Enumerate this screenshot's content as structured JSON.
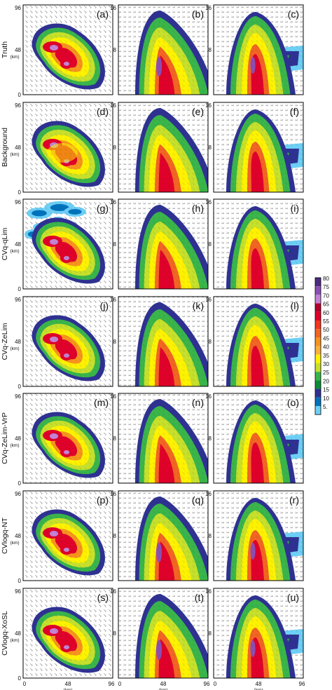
{
  "figure": {
    "row_labels": [
      "Truth",
      "Background",
      "CVq-qLim",
      "CVq-ZeLim",
      "CVq-ZeLim-VrP",
      "CVlogq-NT",
      "CVlogq-XoSL"
    ],
    "panel_labels": [
      [
        "(a)",
        "(b)",
        "(c)"
      ],
      [
        "(d)",
        "(e)",
        "(f)"
      ],
      [
        "(g)",
        "(h)",
        "(i)"
      ],
      [
        "(j)",
        "(k)",
        "(l)"
      ],
      [
        "(m)",
        "(n)",
        "(o)"
      ],
      [
        "(p)",
        "(q)",
        "(r)"
      ],
      [
        "(s)",
        "(t)",
        "(u)"
      ]
    ],
    "plan_view_y_ticks": [
      "0",
      "48",
      "96"
    ],
    "cross_section_y_ticks": [
      "8",
      "16"
    ],
    "x_ticks": [
      "0",
      "48",
      "96"
    ],
    "x_unit": "(km)",
    "y_unit": "(km)"
  },
  "colorbar": {
    "labels": [
      "80",
      "75",
      "70",
      "65",
      "60",
      "55",
      "50",
      "45",
      "40",
      "35",
      "30",
      "25",
      "20",
      "15",
      "10",
      "5."
    ],
    "colors": [
      "#4b2c7f",
      "#8b4fb3",
      "#c283d6",
      "#b4002c",
      "#e0002a",
      "#f2361f",
      "#f26522",
      "#f7941d",
      "#fbb03b",
      "#fff200",
      "#c6e02b",
      "#39b54a",
      "#0d8c3a",
      "#2e3192",
      "#0072bc",
      "#6dcff6"
    ]
  }
}
